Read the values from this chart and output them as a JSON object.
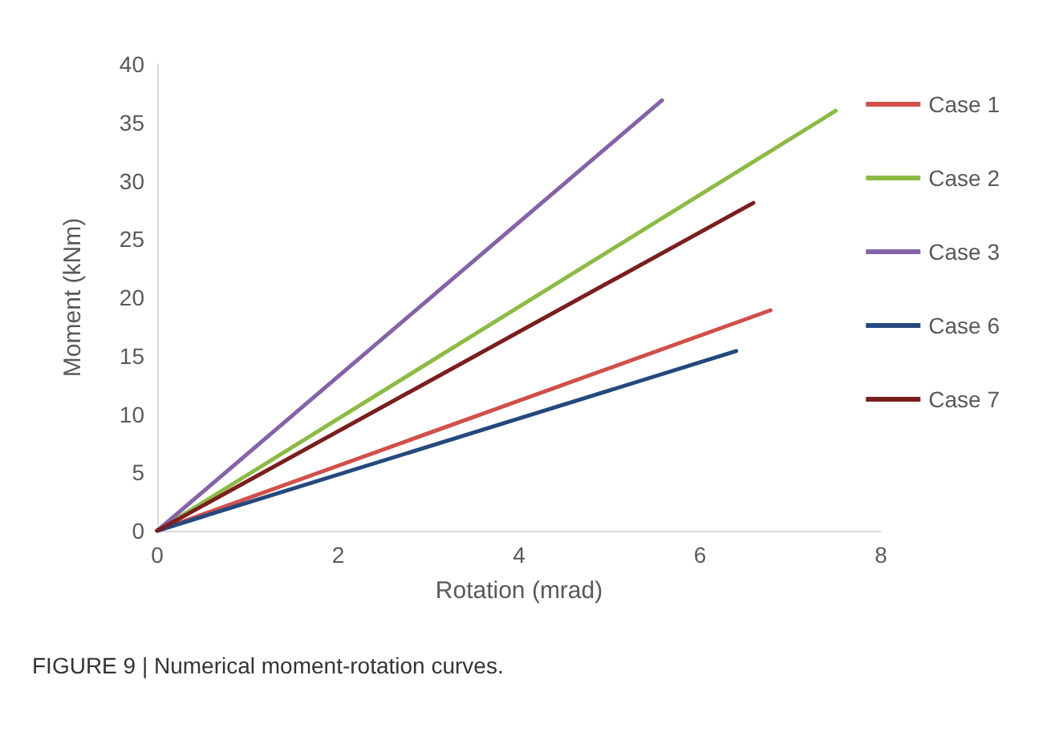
{
  "chart_data": {
    "type": "line",
    "xlabel": "Rotation (mrad)",
    "ylabel": "Moment (kNm)",
    "xlim": [
      0,
      8
    ],
    "xticks": [
      0,
      2,
      4,
      6,
      8
    ],
    "ylim": [
      0,
      40
    ],
    "yticks": [
      0,
      5,
      10,
      15,
      20,
      25,
      30,
      35,
      40
    ],
    "grid": false,
    "legend": "right",
    "marker": "none",
    "line_style": "solid",
    "annotations": [
      "FIGURE 9 | Numerical moment-rotation curves."
    ],
    "series": [
      {
        "name": "Case 1",
        "color": "#d0504a",
        "x": [
          0,
          6.78
        ],
        "values": [
          0,
          18.9
        ]
      },
      {
        "name": "Case 2",
        "color": "#8cbb45",
        "x": [
          0,
          7.5
        ],
        "values": [
          0,
          36.0
        ]
      },
      {
        "name": "Case 3",
        "color": "#8463a8",
        "x": [
          0,
          5.58
        ],
        "values": [
          0,
          36.9
        ]
      },
      {
        "name": "Case 6",
        "color": "#24497e",
        "x": [
          0,
          6.4
        ],
        "values": [
          0,
          15.4
        ]
      },
      {
        "name": "Case 7",
        "color": "#7a1e1e",
        "x": [
          0,
          6.59
        ],
        "values": [
          0,
          28.1
        ]
      }
    ]
  }
}
